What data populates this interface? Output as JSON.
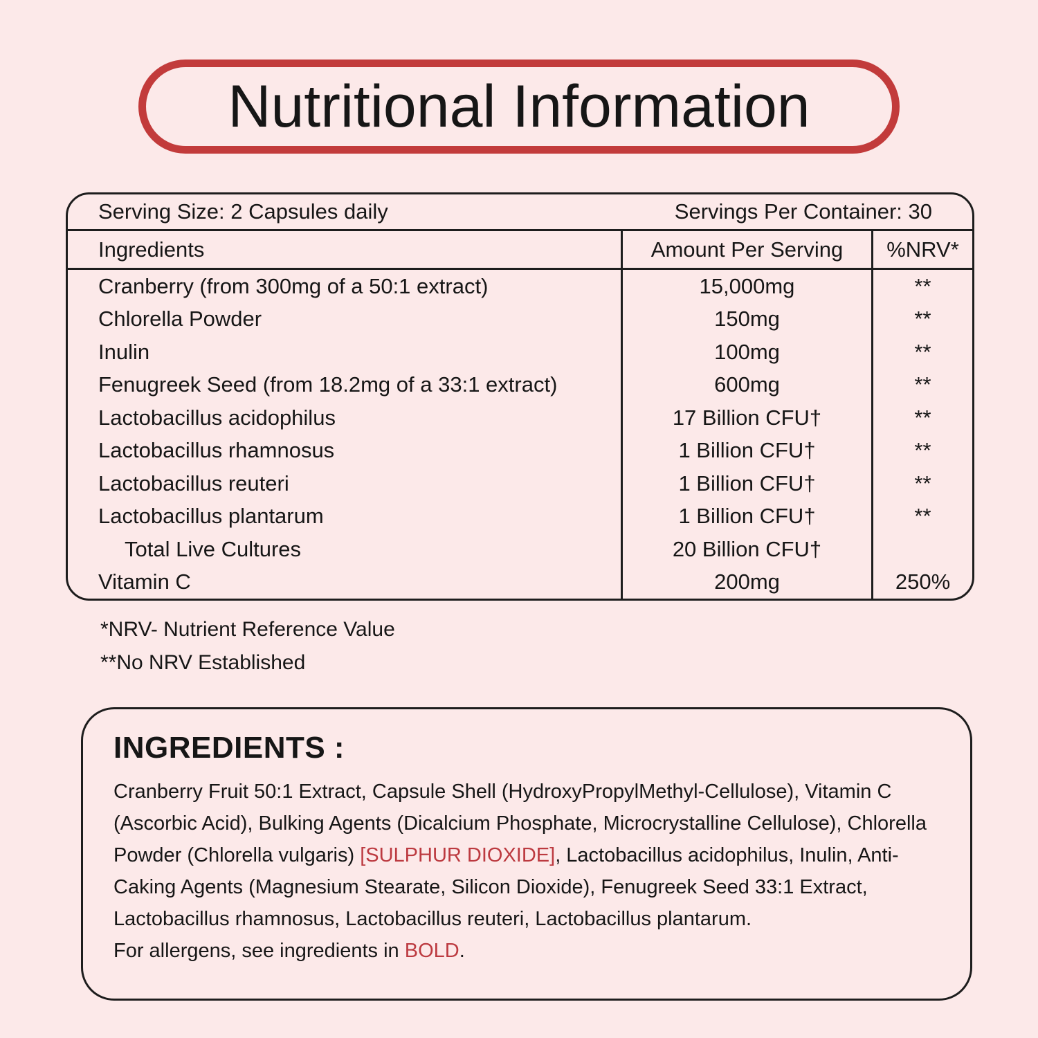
{
  "page": {
    "background_color": "#fce9e9",
    "accent_red": "#c23b3b",
    "text_red": "#bc3a40",
    "ink": "#161616"
  },
  "title": "Nutritional Information",
  "facts_table": {
    "serving_size": "Serving Size: 2 Capsules daily",
    "servings_per_container": "Servings Per Container: 30",
    "columns": [
      "Ingredients",
      "Amount Per Serving",
      "%NRV*"
    ],
    "rows": [
      {
        "ingredient": "Cranberry (from 300mg of a 50:1 extract)",
        "amount": "15,000mg",
        "nrv": "**",
        "indent": false
      },
      {
        "ingredient": "Chlorella Powder",
        "amount": "150mg",
        "nrv": "**",
        "indent": false
      },
      {
        "ingredient": "Inulin",
        "amount": "100mg",
        "nrv": "**",
        "indent": false
      },
      {
        "ingredient": "Fenugreek Seed (from 18.2mg of a 33:1 extract)",
        "amount": "600mg",
        "nrv": "**",
        "indent": false
      },
      {
        "ingredient": "Lactobacillus acidophilus",
        "amount": "17 Billion CFU†",
        "nrv": "**",
        "indent": false
      },
      {
        "ingredient": "Lactobacillus rhamnosus",
        "amount": "1 Billion CFU†",
        "nrv": "**",
        "indent": false
      },
      {
        "ingredient": "Lactobacillus reuteri",
        "amount": "1 Billion CFU†",
        "nrv": "**",
        "indent": false
      },
      {
        "ingredient": "Lactobacillus plantarum",
        "amount": "1 Billion CFU†",
        "nrv": "**",
        "indent": false
      },
      {
        "ingredient": "Total Live Cultures",
        "amount": "20 Billion CFU†",
        "nrv": "",
        "indent": true
      },
      {
        "ingredient": "Vitamin C",
        "amount": "200mg",
        "nrv": "250%",
        "indent": false
      }
    ]
  },
  "footnotes": [
    "*NRV- Nutrient Reference Value",
    "**No NRV Established"
  ],
  "ingredients_panel": {
    "heading": "INGREDIENTS :",
    "body_segments": [
      {
        "text": "Cranberry Fruit 50:1 Extract, Capsule Shell (HydroxyPropylMethyl-Cellulose), Vitamin C (Ascorbic Acid), Bulking Agents (Dicalcium Phosphate, Microcrystalline Cellulose), Chlorella Powder (Chlorella vulgaris) ",
        "color": "black"
      },
      {
        "text": "[SULPHUR DIOXIDE]",
        "color": "red"
      },
      {
        "text": ", Lactobacillus acidophilus, Inulin, Anti-Caking Agents (Magnesium Stearate, Silicon Dioxide), Fenugreek Seed 33:1 Extract, Lactobacillus rhamnosus, Lactobacillus reuteri, Lactobacillus plantarum.",
        "color": "black"
      }
    ],
    "allergen_segments": [
      {
        "text": "For allergens, see ingredients in ",
        "color": "black"
      },
      {
        "text": "BOLD",
        "color": "red"
      },
      {
        "text": ".",
        "color": "black"
      }
    ]
  }
}
